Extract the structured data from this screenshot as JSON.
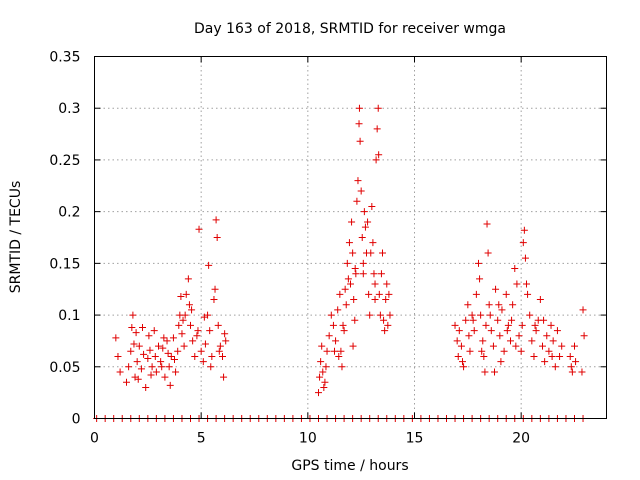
{
  "chart_data": {
    "type": "scatter",
    "title": "Day 163 of 2018, SRMTID for receiver wmga",
    "xlabel": "GPS time / hours",
    "ylabel": "SRMTID / TECUs",
    "xlim": [
      0,
      24
    ],
    "ylim": [
      0,
      0.35
    ],
    "xticks": [
      0,
      5,
      10,
      15,
      20
    ],
    "xtick_labels": [
      "0",
      "5",
      "10",
      "15",
      "20"
    ],
    "yticks": [
      0,
      0.05,
      0.1,
      0.15,
      0.2,
      0.25,
      0.3,
      0.35
    ],
    "ytick_labels": [
      "0",
      "0.05",
      "0.1",
      "0.15",
      "0.2",
      "0.25",
      "0.3",
      "0.35"
    ],
    "grid": true,
    "marker": "+",
    "color": "#e00000",
    "series": [
      {
        "name": "SRMTID",
        "points": [
          [
            0.1,
            0
          ],
          [
            0.5,
            0
          ],
          [
            0.9,
            0
          ],
          [
            1.3,
            0
          ],
          [
            1.7,
            0
          ],
          [
            2.1,
            0
          ],
          [
            2.5,
            0
          ],
          [
            2.9,
            0
          ],
          [
            3.3,
            0
          ],
          [
            3.7,
            0
          ],
          [
            4.1,
            0
          ],
          [
            4.5,
            0
          ],
          [
            4.9,
            0
          ],
          [
            5.3,
            0
          ],
          [
            5.7,
            0
          ],
          [
            6.1,
            0
          ],
          [
            6.5,
            0
          ],
          [
            6.9,
            0
          ],
          [
            7.3,
            0
          ],
          [
            7.7,
            0
          ],
          [
            8.1,
            0
          ],
          [
            8.5,
            0
          ],
          [
            8.9,
            0
          ],
          [
            9.3,
            0
          ],
          [
            9.7,
            0
          ],
          [
            10.1,
            0
          ],
          [
            10.5,
            0
          ],
          [
            10.9,
            0
          ],
          [
            11.3,
            0
          ],
          [
            11.7,
            0
          ],
          [
            12.1,
            0
          ],
          [
            12.5,
            0
          ],
          [
            12.9,
            0
          ],
          [
            13.3,
            0
          ],
          [
            13.7,
            0
          ],
          [
            14.1,
            0
          ],
          [
            14.5,
            0
          ],
          [
            14.9,
            0
          ],
          [
            15.3,
            0
          ],
          [
            15.7,
            0
          ],
          [
            16.1,
            0
          ],
          [
            16.5,
            0
          ],
          [
            16.9,
            0
          ],
          [
            17.3,
            0
          ],
          [
            17.7,
            0
          ],
          [
            18.1,
            0
          ],
          [
            18.5,
            0
          ],
          [
            18.9,
            0
          ],
          [
            19.3,
            0
          ],
          [
            19.7,
            0
          ],
          [
            20.1,
            0
          ],
          [
            20.5,
            0
          ],
          [
            20.9,
            0
          ],
          [
            21.3,
            0
          ],
          [
            21.7,
            0
          ],
          [
            22.1,
            0
          ],
          [
            22.5,
            0
          ],
          [
            22.9,
            0
          ],
          [
            1.0,
            0.078
          ],
          [
            1.1,
            0.06
          ],
          [
            1.2,
            0.045
          ],
          [
            1.5,
            0.035
          ],
          [
            1.6,
            0.05
          ],
          [
            1.7,
            0.065
          ],
          [
            1.75,
            0.088
          ],
          [
            1.8,
            0.1
          ],
          [
            1.85,
            0.072
          ],
          [
            1.9,
            0.04
          ],
          [
            2.0,
            0.055
          ],
          [
            2.1,
            0.07
          ],
          [
            2.2,
            0.048
          ],
          [
            2.3,
            0.062
          ],
          [
            2.4,
            0.03
          ],
          [
            2.5,
            0.058
          ],
          [
            2.55,
            0.08
          ],
          [
            2.6,
            0.066
          ],
          [
            2.7,
            0.05
          ],
          [
            2.8,
            0.085
          ],
          [
            2.85,
            0.06
          ],
          [
            2.9,
            0.045
          ],
          [
            3.0,
            0.07
          ],
          [
            3.1,
            0.055
          ],
          [
            3.2,
            0.068
          ],
          [
            3.3,
            0.04
          ],
          [
            3.4,
            0.075
          ],
          [
            3.5,
            0.05
          ],
          [
            3.55,
            0.032
          ],
          [
            3.6,
            0.06
          ],
          [
            3.7,
            0.078
          ],
          [
            3.8,
            0.045
          ],
          [
            3.9,
            0.065
          ],
          [
            3.95,
            0.09
          ],
          [
            4.0,
            0.1
          ],
          [
            4.05,
            0.118
          ],
          [
            4.1,
            0.082
          ],
          [
            4.2,
            0.07
          ],
          [
            4.25,
            0.1
          ],
          [
            4.3,
            0.12
          ],
          [
            4.4,
            0.135
          ],
          [
            4.45,
            0.11
          ],
          [
            4.5,
            0.09
          ],
          [
            4.6,
            0.075
          ],
          [
            4.7,
            0.06
          ],
          [
            4.8,
            0.08
          ],
          [
            4.9,
            0.183
          ],
          [
            5.0,
            0.065
          ],
          [
            5.1,
            0.055
          ],
          [
            5.2,
            0.072
          ],
          [
            5.3,
            0.1
          ],
          [
            5.35,
            0.148
          ],
          [
            5.4,
            0.085
          ],
          [
            5.5,
            0.06
          ],
          [
            5.6,
            0.115
          ],
          [
            5.65,
            0.125
          ],
          [
            5.7,
            0.192
          ],
          [
            5.75,
            0.175
          ],
          [
            5.8,
            0.09
          ],
          [
            5.9,
            0.07
          ],
          [
            6.0,
            0.06
          ],
          [
            6.05,
            0.04
          ],
          [
            6.1,
            0.082
          ],
          [
            6.15,
            0.075
          ],
          [
            1.95,
            0.083
          ],
          [
            2.25,
            0.088
          ],
          [
            2.65,
            0.042
          ],
          [
            3.15,
            0.05
          ],
          [
            3.45,
            0.063
          ],
          [
            3.75,
            0.057
          ],
          [
            4.15,
            0.095
          ],
          [
            4.55,
            0.105
          ],
          [
            4.85,
            0.085
          ],
          [
            5.15,
            0.098
          ],
          [
            5.45,
            0.05
          ],
          [
            5.85,
            0.065
          ],
          [
            3.25,
            0.078
          ],
          [
            2.05,
            0.038
          ],
          [
            10.5,
            0.025
          ],
          [
            10.55,
            0.04
          ],
          [
            10.6,
            0.055
          ],
          [
            10.65,
            0.07
          ],
          [
            10.7,
            0.045
          ],
          [
            10.75,
            0.03
          ],
          [
            10.8,
            0.035
          ],
          [
            10.85,
            0.05
          ],
          [
            10.9,
            0.065
          ],
          [
            11.0,
            0.08
          ],
          [
            11.1,
            0.1
          ],
          [
            11.2,
            0.09
          ],
          [
            11.3,
            0.075
          ],
          [
            11.4,
            0.105
          ],
          [
            11.5,
            0.12
          ],
          [
            11.55,
            0.065
          ],
          [
            11.6,
            0.05
          ],
          [
            11.7,
            0.085
          ],
          [
            11.8,
            0.11
          ],
          [
            11.85,
            0.15
          ],
          [
            11.9,
            0.135
          ],
          [
            11.95,
            0.17
          ],
          [
            12.0,
            0.13
          ],
          [
            12.05,
            0.19
          ],
          [
            12.1,
            0.16
          ],
          [
            12.15,
            0.115
          ],
          [
            12.2,
            0.095
          ],
          [
            12.25,
            0.14
          ],
          [
            12.3,
            0.21
          ],
          [
            12.35,
            0.23
          ],
          [
            12.4,
            0.285
          ],
          [
            12.42,
            0.3
          ],
          [
            12.45,
            0.268
          ],
          [
            12.5,
            0.22
          ],
          [
            12.55,
            0.175
          ],
          [
            12.6,
            0.15
          ],
          [
            12.65,
            0.2
          ],
          [
            12.7,
            0.185
          ],
          [
            12.75,
            0.16
          ],
          [
            12.8,
            0.19
          ],
          [
            12.85,
            0.12
          ],
          [
            12.9,
            0.1
          ],
          [
            12.95,
            0.16
          ],
          [
            13.0,
            0.205
          ],
          [
            13.05,
            0.17
          ],
          [
            13.1,
            0.14
          ],
          [
            13.15,
            0.115
          ],
          [
            13.2,
            0.25
          ],
          [
            13.25,
            0.28
          ],
          [
            13.3,
            0.3
          ],
          [
            13.32,
            0.255
          ],
          [
            13.35,
            0.12
          ],
          [
            13.4,
            0.1
          ],
          [
            13.45,
            0.14
          ],
          [
            13.5,
            0.16
          ],
          [
            13.55,
            0.095
          ],
          [
            13.6,
            0.085
          ],
          [
            13.65,
            0.115
          ],
          [
            13.7,
            0.13
          ],
          [
            13.75,
            0.09
          ],
          [
            13.8,
            0.12
          ],
          [
            13.85,
            0.1
          ],
          [
            11.25,
            0.065
          ],
          [
            11.65,
            0.09
          ],
          [
            12.12,
            0.07
          ],
          [
            12.6,
            0.14
          ],
          [
            13.15,
            0.13
          ],
          [
            11.45,
            0.06
          ],
          [
            11.75,
            0.125
          ],
          [
            12.22,
            0.145
          ],
          [
            16.9,
            0.09
          ],
          [
            17.0,
            0.075
          ],
          [
            17.05,
            0.06
          ],
          [
            17.1,
            0.085
          ],
          [
            17.2,
            0.07
          ],
          [
            17.3,
            0.05
          ],
          [
            17.4,
            0.095
          ],
          [
            17.5,
            0.11
          ],
          [
            17.55,
            0.08
          ],
          [
            17.6,
            0.065
          ],
          [
            17.7,
            0.1
          ],
          [
            17.8,
            0.085
          ],
          [
            17.9,
            0.12
          ],
          [
            18.0,
            0.15
          ],
          [
            18.05,
            0.135
          ],
          [
            18.1,
            0.1
          ],
          [
            18.2,
            0.075
          ],
          [
            18.25,
            0.06
          ],
          [
            18.3,
            0.045
          ],
          [
            18.35,
            0.09
          ],
          [
            18.4,
            0.188
          ],
          [
            18.45,
            0.16
          ],
          [
            18.5,
            0.11
          ],
          [
            18.6,
            0.085
          ],
          [
            18.7,
            0.07
          ],
          [
            18.8,
            0.125
          ],
          [
            18.9,
            0.095
          ],
          [
            19.0,
            0.08
          ],
          [
            19.1,
            0.105
          ],
          [
            19.2,
            0.065
          ],
          [
            19.3,
            0.12
          ],
          [
            19.4,
            0.09
          ],
          [
            19.5,
            0.075
          ],
          [
            19.6,
            0.11
          ],
          [
            19.7,
            0.145
          ],
          [
            19.8,
            0.13
          ],
          [
            19.9,
            0.08
          ],
          [
            20.0,
            0.065
          ],
          [
            20.05,
            0.09
          ],
          [
            20.1,
            0.17
          ],
          [
            20.15,
            0.182
          ],
          [
            20.2,
            0.155
          ],
          [
            20.3,
            0.12
          ],
          [
            20.4,
            0.1
          ],
          [
            20.5,
            0.075
          ],
          [
            20.6,
            0.06
          ],
          [
            20.7,
            0.085
          ],
          [
            20.8,
            0.095
          ],
          [
            20.9,
            0.115
          ],
          [
            21.0,
            0.07
          ],
          [
            21.1,
            0.055
          ],
          [
            21.2,
            0.08
          ],
          [
            21.3,
            0.065
          ],
          [
            21.4,
            0.09
          ],
          [
            21.5,
            0.075
          ],
          [
            21.6,
            0.05
          ],
          [
            21.7,
            0.085
          ],
          [
            21.8,
            0.06
          ],
          [
            21.9,
            0.07
          ],
          [
            22.3,
            0.06
          ],
          [
            22.35,
            0.05
          ],
          [
            22.4,
            0.045
          ],
          [
            22.5,
            0.07
          ],
          [
            22.55,
            0.055
          ],
          [
            22.9,
            0.105
          ],
          [
            22.95,
            0.08
          ],
          [
            22.85,
            0.045
          ],
          [
            17.25,
            0.055
          ],
          [
            17.75,
            0.095
          ],
          [
            18.15,
            0.065
          ],
          [
            18.55,
            0.1
          ],
          [
            18.95,
            0.11
          ],
          [
            19.35,
            0.085
          ],
          [
            19.75,
            0.07
          ],
          [
            20.25,
            0.13
          ],
          [
            20.65,
            0.09
          ],
          [
            21.05,
            0.095
          ],
          [
            21.45,
            0.06
          ],
          [
            19.05,
            0.055
          ],
          [
            19.55,
            0.095
          ],
          [
            18.75,
            0.045
          ]
        ]
      }
    ]
  }
}
